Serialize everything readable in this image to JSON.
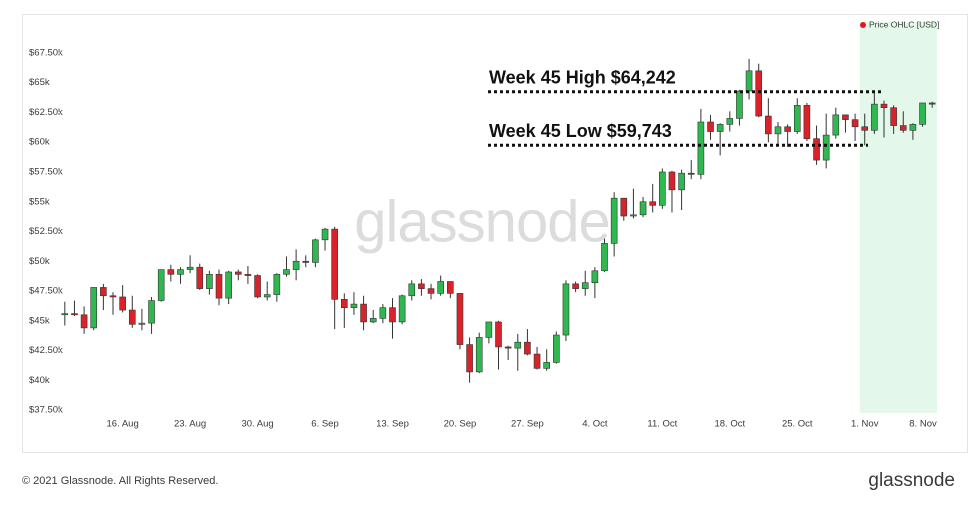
{
  "chart_data": {
    "type": "candlestick",
    "legend": {
      "label": "Price OHLC [USD]",
      "color": "#e8141b",
      "position": "top-right"
    },
    "watermark": "glassnode",
    "up_color": "#2eb84f",
    "down_color": "#d9232b",
    "highlight": {
      "from": "1. Nov",
      "color": "#e3f8ea"
    },
    "annotations": [
      {
        "text": "Week 45 High $64,242",
        "value": 64242
      },
      {
        "text": "Week 45 Low $59,743",
        "value": 59743
      }
    ],
    "ylim": [
      37250,
      69430
    ],
    "yticks": [
      {
        "value": 37500,
        "label": "$37.50k"
      },
      {
        "value": 40000,
        "label": "$40k"
      },
      {
        "value": 42500,
        "label": "$42.50k"
      },
      {
        "value": 45000,
        "label": "$45k"
      },
      {
        "value": 47500,
        "label": "$47.50k"
      },
      {
        "value": 50000,
        "label": "$50k"
      },
      {
        "value": 52500,
        "label": "$52.50k"
      },
      {
        "value": 55000,
        "label": "$55k"
      },
      {
        "value": 57500,
        "label": "$57.50k"
      },
      {
        "value": 60000,
        "label": "$60k"
      },
      {
        "value": 62500,
        "label": "$62.50k"
      },
      {
        "value": 65000,
        "label": "$65k"
      },
      {
        "value": 67500,
        "label": "$67.50k"
      }
    ],
    "categories": [
      null,
      null,
      null,
      null,
      null,
      null,
      "16. Aug",
      null,
      null,
      null,
      null,
      null,
      null,
      "23. Aug",
      null,
      null,
      null,
      null,
      null,
      null,
      "30. Aug",
      null,
      null,
      null,
      null,
      null,
      null,
      "6. Sep",
      null,
      null,
      null,
      null,
      null,
      null,
      "13. Sep",
      null,
      null,
      null,
      null,
      null,
      null,
      "20. Sep",
      null,
      null,
      null,
      null,
      null,
      null,
      "27. Sep",
      null,
      null,
      null,
      null,
      null,
      null,
      "4. Oct",
      null,
      null,
      null,
      null,
      null,
      null,
      "11. Oct",
      null,
      null,
      null,
      null,
      null,
      null,
      "18. Oct",
      null,
      null,
      null,
      null,
      null,
      null,
      "25. Oct",
      null,
      null,
      null,
      null,
      null,
      null,
      "1. Nov",
      null,
      null,
      null,
      null,
      null,
      null,
      "8. Nov"
    ],
    "open": [
      45500,
      45600,
      45500,
      44400,
      47800,
      47100,
      47000,
      45900,
      44700,
      44800,
      46700,
      49300,
      48900,
      49300,
      49500,
      47700,
      48900,
      46900,
      49100,
      48900,
      48800,
      47000,
      47200,
      48900,
      49300,
      50000,
      49900,
      51800,
      52700,
      46800,
      46100,
      46400,
      44900,
      45200,
      46100,
      44900,
      47100,
      48100,
      47700,
      47300,
      48300,
      47300,
      43000,
      40700,
      43600,
      44900,
      42800,
      42700,
      43200,
      42200,
      41000,
      41500,
      43800,
      48100,
      47700,
      48200,
      49200,
      51500,
      55300,
      53800,
      53900,
      55000,
      54700,
      57500,
      56000,
      57400,
      57300,
      61700,
      60900,
      61500,
      62000,
      64300,
      66000,
      62200,
      60700,
      61300,
      60900,
      63100,
      60300,
      58500,
      60600,
      62300,
      61900,
      61300,
      61000,
      63200,
      62900,
      61400,
      61000,
      61500,
      63300
    ],
    "high": [
      46600,
      46700,
      46200,
      47800,
      48100,
      47400,
      48000,
      47100,
      46000,
      47000,
      49300,
      49700,
      49500,
      50500,
      49800,
      49200,
      49300,
      49200,
      49300,
      49600,
      48900,
      48300,
      49000,
      50400,
      51000,
      50500,
      51900,
      52800,
      52900,
      47300,
      47400,
      47100,
      45900,
      46400,
      46900,
      47200,
      48400,
      48500,
      48100,
      48800,
      48300,
      47300,
      43600,
      44000,
      44900,
      45000,
      42900,
      43900,
      44300,
      42800,
      42600,
      44100,
      48400,
      48300,
      49200,
      49500,
      51900,
      55800,
      55300,
      56100,
      55400,
      56500,
      57800,
      57600,
      57700,
      58500,
      62800,
      62300,
      61600,
      62600,
      64400,
      67000,
      66600,
      63700,
      61700,
      61500,
      63700,
      63300,
      61400,
      62400,
      62900,
      62300,
      62400,
      62400,
      64242,
      63500,
      63100,
      62600,
      61600,
      63300,
      63400
    ],
    "low": [
      44600,
      45400,
      43900,
      44200,
      45900,
      45500,
      45700,
      44400,
      44200,
      43900,
      46600,
      48300,
      48100,
      49000,
      47600,
      47200,
      46300,
      46400,
      48400,
      48100,
      46900,
      46700,
      46600,
      48700,
      48400,
      49500,
      49500,
      50900,
      44300,
      44400,
      45500,
      44200,
      44800,
      44800,
      43500,
      44700,
      46700,
      47100,
      46800,
      47100,
      46900,
      42600,
      39800,
      40600,
      43100,
      40900,
      41700,
      40800,
      42100,
      40900,
      40800,
      41400,
      43300,
      47400,
      47100,
      46900,
      49100,
      50400,
      53400,
      53600,
      53700,
      54100,
      54400,
      54100,
      54300,
      56900,
      56900,
      60200,
      58900,
      60900,
      61400,
      63600,
      62100,
      60000,
      59700,
      59600,
      60700,
      60100,
      58100,
      57800,
      60300,
      60800,
      60100,
      59743,
      60700,
      60400,
      60700,
      60800,
      60200,
      61300,
      62900
    ],
    "close": [
      45600,
      45500,
      44400,
      47800,
      47100,
      47000,
      45900,
      44700,
      44800,
      46700,
      49300,
      48900,
      49300,
      49500,
      47700,
      48900,
      46900,
      49100,
      48900,
      48800,
      47000,
      47200,
      48900,
      49300,
      50000,
      49900,
      51800,
      52700,
      46800,
      46100,
      46400,
      44900,
      45200,
      46100,
      44900,
      47100,
      48100,
      47700,
      47300,
      48300,
      47300,
      43000,
      40700,
      43600,
      44900,
      42800,
      42700,
      43200,
      42200,
      41000,
      41500,
      43800,
      48100,
      47700,
      48200,
      49200,
      51500,
      55300,
      53800,
      53900,
      55000,
      54700,
      57500,
      56000,
      57400,
      57300,
      61700,
      60900,
      61500,
      62000,
      64300,
      66000,
      62200,
      60700,
      61300,
      60900,
      63100,
      60300,
      58500,
      60600,
      62300,
      61900,
      61300,
      61000,
      63200,
      62900,
      61400,
      61000,
      61500,
      63300,
      63200
    ]
  },
  "footer": {
    "copyright": "© 2021 Glassnode. All Rights Reserved.",
    "logo": "glassnode"
  }
}
